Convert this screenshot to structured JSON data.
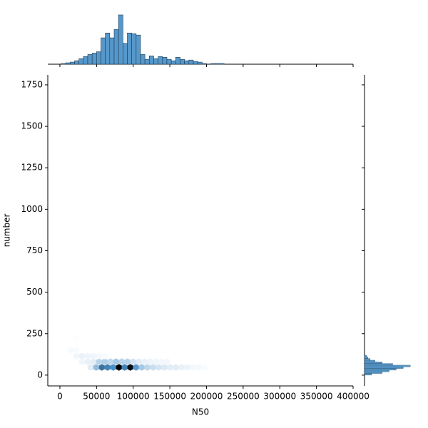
{
  "chart_data": [
    {
      "type": "hexbin",
      "xlabel": "N50",
      "ylabel": "number",
      "x": [
        41700,
        49500,
        57300,
        65000,
        72800,
        80600,
        88300,
        96100,
        103900,
        111700,
        119400,
        127200,
        135000,
        142700,
        150500,
        158300,
        166000,
        173800,
        181600,
        189300,
        197100,
        30100,
        37900,
        45600,
        53400,
        61200,
        68900,
        76700,
        84500,
        92200,
        100000,
        107800,
        115500,
        123300,
        131100,
        138900,
        146600,
        22300,
        30100,
        37900,
        45600,
        53400,
        61200,
        14500,
        22300,
        22300
      ],
      "y": [
        47,
        47,
        47,
        47,
        47,
        47,
        47,
        47,
        47,
        47,
        47,
        47,
        47,
        47,
        47,
        47,
        47,
        47,
        47,
        47,
        47,
        81,
        81,
        81,
        81,
        81,
        81,
        81,
        81,
        81,
        81,
        81,
        81,
        81,
        81,
        81,
        81,
        115,
        115,
        115,
        115,
        115,
        115,
        150,
        150,
        225
      ],
      "values": [
        8,
        30,
        60,
        55,
        50,
        100,
        55,
        95,
        45,
        25,
        18,
        15,
        12,
        10,
        8,
        8,
        6,
        5,
        3,
        3,
        2,
        4,
        6,
        8,
        20,
        22,
        18,
        25,
        20,
        20,
        12,
        8,
        6,
        5,
        4,
        3,
        3,
        4,
        6,
        5,
        4,
        3,
        2,
        2,
        2,
        1
      ],
      "cmap": [
        "#ffffff",
        "#4a90c8",
        "#000000"
      ],
      "xlim": [
        -16500,
        400000
      ],
      "xticks": [
        0,
        50000,
        100000,
        150000,
        200000,
        250000,
        300000,
        350000,
        400000
      ],
      "ylim": [
        -65,
        1810
      ],
      "yticks": [
        0,
        250,
        500,
        750,
        1000,
        1250,
        1500,
        1750
      ]
    },
    {
      "type": "histogram",
      "orientation": "vertical",
      "color": "#5698cb",
      "bins": [
        2000,
        8000,
        14000,
        20000,
        26000,
        32000,
        38000,
        44000,
        50000,
        56000,
        62000,
        68000,
        74000,
        80000,
        86000,
        92000,
        98000,
        104000,
        110000,
        116000,
        122000,
        128000,
        134000,
        140000,
        146000,
        152000,
        158000,
        164000,
        170000,
        176000,
        182000,
        188000,
        194000,
        200000,
        206000,
        212000,
        218000,
        224000
      ],
      "values": [
        1,
        2,
        3,
        5,
        8,
        11,
        14,
        16,
        18,
        38,
        45,
        38,
        50,
        71,
        30,
        45,
        44,
        42,
        14,
        7,
        12,
        8,
        11,
        10,
        7,
        5,
        10,
        7,
        5,
        6,
        4,
        3,
        1,
        0,
        1,
        1,
        1
      ],
      "ylim": [
        0,
        72
      ]
    },
    {
      "type": "histogram",
      "orientation": "horizontal",
      "color": "#5698cb",
      "bins": [
        0,
        10,
        20,
        30,
        40,
        50,
        60,
        70,
        80,
        90,
        100,
        110,
        120
      ],
      "values": [
        10,
        25,
        35,
        45,
        55,
        65,
        40,
        25,
        15,
        8,
        5,
        3
      ],
      "xlim": [
        0,
        80
      ]
    }
  ]
}
